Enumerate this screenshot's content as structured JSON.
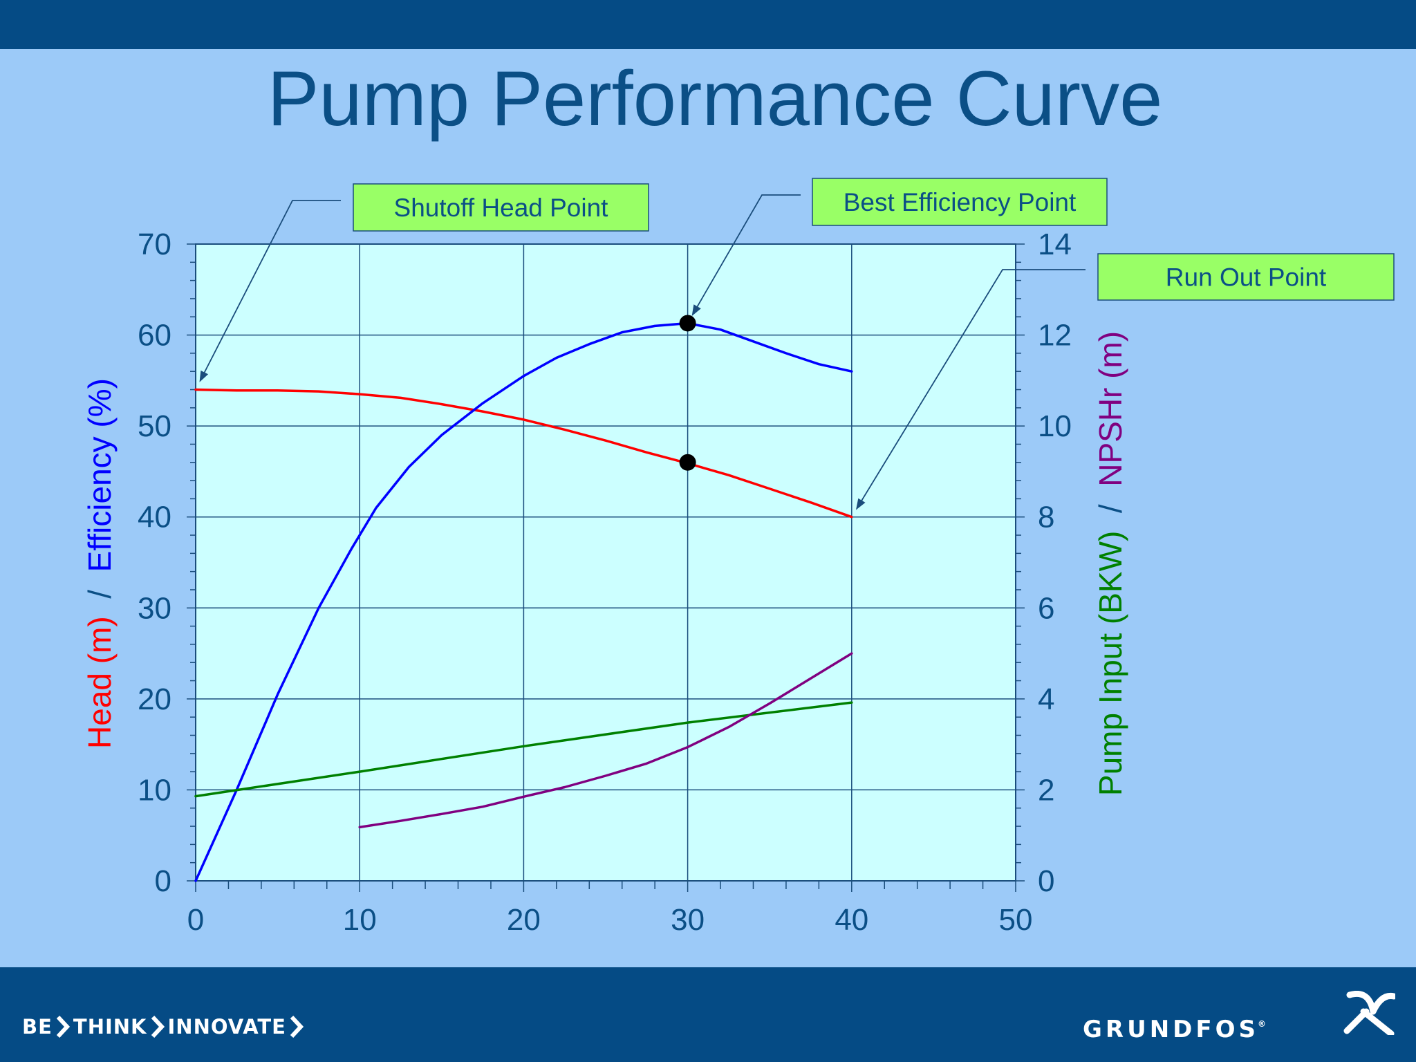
{
  "slide": {
    "title": "Pump Performance Curve",
    "colors": {
      "background": "#9ccaf8",
      "bars": "#054b85",
      "title": "#0b4f86"
    }
  },
  "footer": {
    "tagline": [
      "BE",
      "THINK",
      "INNOVATE"
    ],
    "brand": "GRUNDFOS",
    "brand_mark": "®",
    "brand_icon": "grundfos-x-logo-icon",
    "chevron_icon": "chevron-right-icon"
  },
  "chart_data": {
    "type": "line",
    "title": "Pump Performance Curve",
    "plot_background": "#ccffff",
    "grid": true,
    "x_axis": {
      "range": [
        0,
        50
      ],
      "ticks": [
        0,
        10,
        20,
        30,
        40,
        50
      ],
      "minor_step": 2
    },
    "y_left": {
      "range": [
        0,
        70
      ],
      "ticks": [
        0,
        10,
        20,
        30,
        40,
        50,
        60,
        70
      ],
      "minor_step": 2,
      "label_parts": [
        {
          "text": "Head (m)",
          "color": "#ff0000"
        },
        {
          "text": "/",
          "color": "#0b4f86"
        },
        {
          "text": "Efficiency (%)",
          "color": "#0000ff"
        }
      ]
    },
    "y_right": {
      "range": [
        0,
        14
      ],
      "ticks": [
        0,
        2,
        4,
        6,
        8,
        10,
        12,
        14
      ],
      "minor_step": 0.4,
      "label_parts": [
        {
          "text": "Pump Input (BKW)",
          "color": "#008000"
        },
        {
          "text": "/",
          "color": "#0b4f86"
        },
        {
          "text": "NPSHr (m)",
          "color": "#800080"
        }
      ]
    },
    "series": [
      {
        "axis": "left",
        "color": "#ff0000",
        "points": [
          [
            0,
            54
          ],
          [
            2.5,
            53.9
          ],
          [
            5,
            53.9
          ],
          [
            7.5,
            53.8
          ],
          [
            10,
            53.5
          ],
          [
            12.5,
            53.1
          ],
          [
            15,
            52.4
          ],
          [
            17.5,
            51.6
          ],
          [
            20,
            50.7
          ],
          [
            22.5,
            49.6
          ],
          [
            25,
            48.4
          ],
          [
            27.5,
            47.1
          ],
          [
            30,
            45.9
          ],
          [
            32.5,
            44.6
          ],
          [
            35,
            43.1
          ],
          [
            37.5,
            41.6
          ],
          [
            40,
            40
          ]
        ]
      },
      {
        "axis": "left",
        "color": "#0000ff",
        "points": [
          [
            0,
            0
          ],
          [
            2.5,
            10
          ],
          [
            5,
            20.5
          ],
          [
            7.5,
            30
          ],
          [
            9.5,
            36.5
          ],
          [
            11,
            41
          ],
          [
            13,
            45.5
          ],
          [
            15,
            49
          ],
          [
            17.5,
            52.5
          ],
          [
            20,
            55.5
          ],
          [
            22,
            57.5
          ],
          [
            24,
            59
          ],
          [
            26,
            60.3
          ],
          [
            28,
            61
          ],
          [
            30,
            61.3
          ],
          [
            32,
            60.6
          ],
          [
            34,
            59.3
          ],
          [
            36,
            58
          ],
          [
            38,
            56.8
          ],
          [
            40,
            56
          ]
        ]
      },
      {
        "axis": "right",
        "color": "#008000",
        "points": [
          [
            0,
            1.86
          ],
          [
            10,
            2.4
          ],
          [
            20,
            2.96
          ],
          [
            30,
            3.48
          ],
          [
            40,
            3.92
          ]
        ]
      },
      {
        "axis": "right",
        "color": "#800080",
        "points": [
          [
            10,
            1.18
          ],
          [
            12.5,
            1.32
          ],
          [
            15,
            1.47
          ],
          [
            17.5,
            1.63
          ],
          [
            20,
            1.85
          ],
          [
            22.5,
            2.06
          ],
          [
            25,
            2.31
          ],
          [
            27.5,
            2.58
          ],
          [
            30,
            2.94
          ],
          [
            32.5,
            3.38
          ],
          [
            35,
            3.9
          ],
          [
            37.5,
            4.45
          ],
          [
            40,
            5
          ]
        ]
      }
    ],
    "markers": [
      {
        "x": 30,
        "y": 61.3,
        "axis": "left"
      },
      {
        "x": 30,
        "y": 46,
        "axis": "left"
      }
    ],
    "annotations": [
      {
        "text": "Shutoff Head Point",
        "target": [
          0,
          54
        ]
      },
      {
        "text": "Best Efficiency Point",
        "target": [
          30,
          61.3
        ]
      },
      {
        "text": "Run Out Point",
        "target": [
          40,
          40
        ]
      }
    ],
    "annotation_colors": {
      "fill": "#99ff66",
      "text": "#0b4f86",
      "line": "#1a4d7c"
    }
  }
}
